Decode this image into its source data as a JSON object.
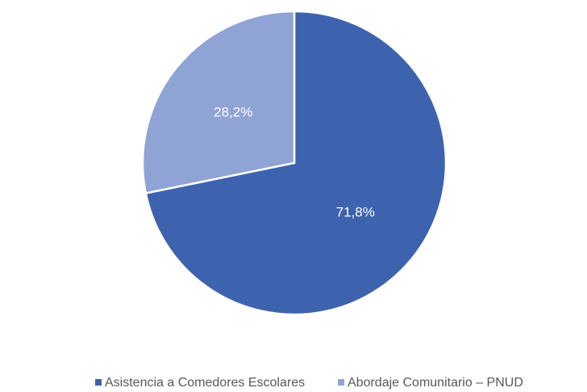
{
  "chart_data": {
    "type": "pie",
    "categories": [
      "Asistencia a Comedores Escolares",
      "Abordaje Comunitario – PNUD"
    ],
    "values": [
      71.8,
      28.2
    ],
    "value_labels": [
      "71,8%",
      "28,2%"
    ],
    "colors": [
      "#3d63ae",
      "#8fa3d5"
    ],
    "legend": "bottom"
  }
}
